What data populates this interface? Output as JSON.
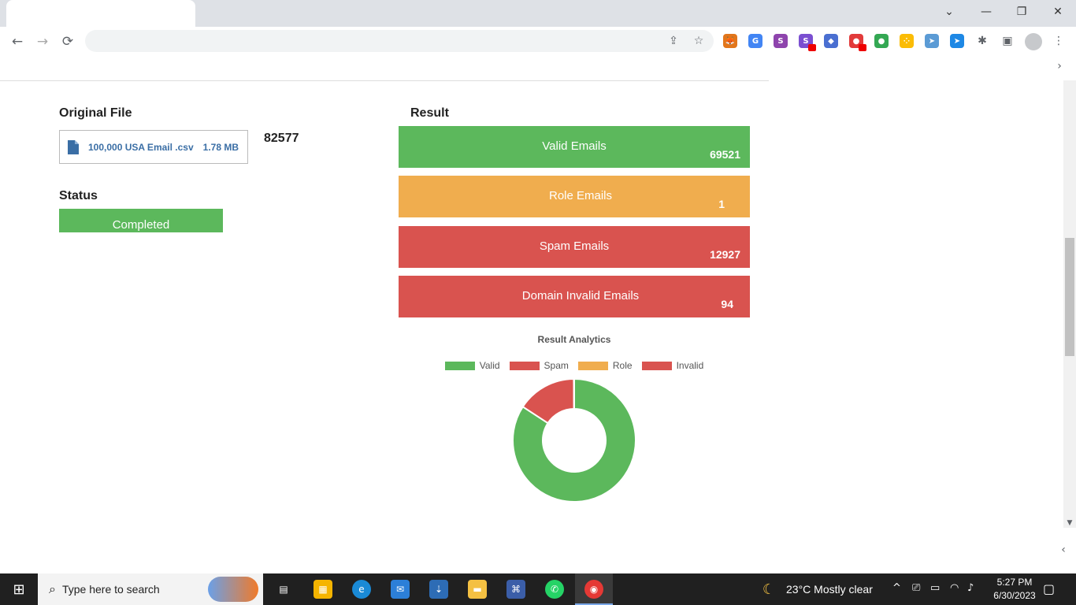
{
  "browser": {
    "window_controls": {
      "minimize": "—",
      "restore": "❐",
      "close": "✕",
      "tab_list": "⌄"
    },
    "nav": {
      "back": "←",
      "forward": "→",
      "reload": "⟳"
    },
    "extensions": [
      {
        "name": "metamask-icon",
        "color": "#e2761b",
        "glyph": "🦊"
      },
      {
        "name": "translate-icon",
        "color": "#4285f4",
        "glyph": "G"
      },
      {
        "name": "s-extension-icon",
        "color": "#8e44ad",
        "glyph": "S"
      },
      {
        "name": "s-badge-extension-icon",
        "color": "#7b4fd1",
        "glyph": "S"
      },
      {
        "name": "puzzle-colored-icon",
        "color": "#4a6fd1",
        "glyph": "◆"
      },
      {
        "name": "red-extension-icon",
        "color": "#e23b3b",
        "glyph": "●"
      },
      {
        "name": "green-extension-icon",
        "color": "#34a853",
        "glyph": "●"
      },
      {
        "name": "dots-extension-icon",
        "color": "#fbbc05",
        "glyph": "⁘"
      },
      {
        "name": "telegram-icon",
        "color": "#5b9bd5",
        "glyph": "➤"
      },
      {
        "name": "send-extension-icon",
        "color": "#1e88e5",
        "glyph": "➤"
      }
    ]
  },
  "page": {
    "original_file_title": "Original File",
    "file_name": "100,000 USA Email .csv",
    "file_size": "1.78 MB",
    "total_count": "82577",
    "status_title": "Status",
    "status_value": "Completed",
    "result_title": "Result",
    "results": [
      {
        "label": "Valid Emails",
        "value": "69521",
        "color": "#5cb85c"
      },
      {
        "label": "Role Emails",
        "value": "1",
        "color": "#f0ad4e"
      },
      {
        "label": "Spam Emails",
        "value": "12927",
        "color": "#d9534f"
      },
      {
        "label": "Domain Invalid Emails",
        "value": "94",
        "color": "#d9534f"
      }
    ]
  },
  "chart_data": {
    "type": "pie",
    "title": "Result Analytics",
    "legend_position": "top",
    "categories": [
      "Valid",
      "Spam",
      "Role",
      "Invalid"
    ],
    "values": [
      69521,
      12927,
      1,
      94
    ],
    "colors": [
      "#5cb85c",
      "#d9534f",
      "#f0ad4e",
      "#d9534f"
    ]
  },
  "taskbar": {
    "search_placeholder": "Type here to search",
    "weather": "23°C  Mostly clear",
    "time": "5:27 PM",
    "date": "6/30/2023"
  }
}
